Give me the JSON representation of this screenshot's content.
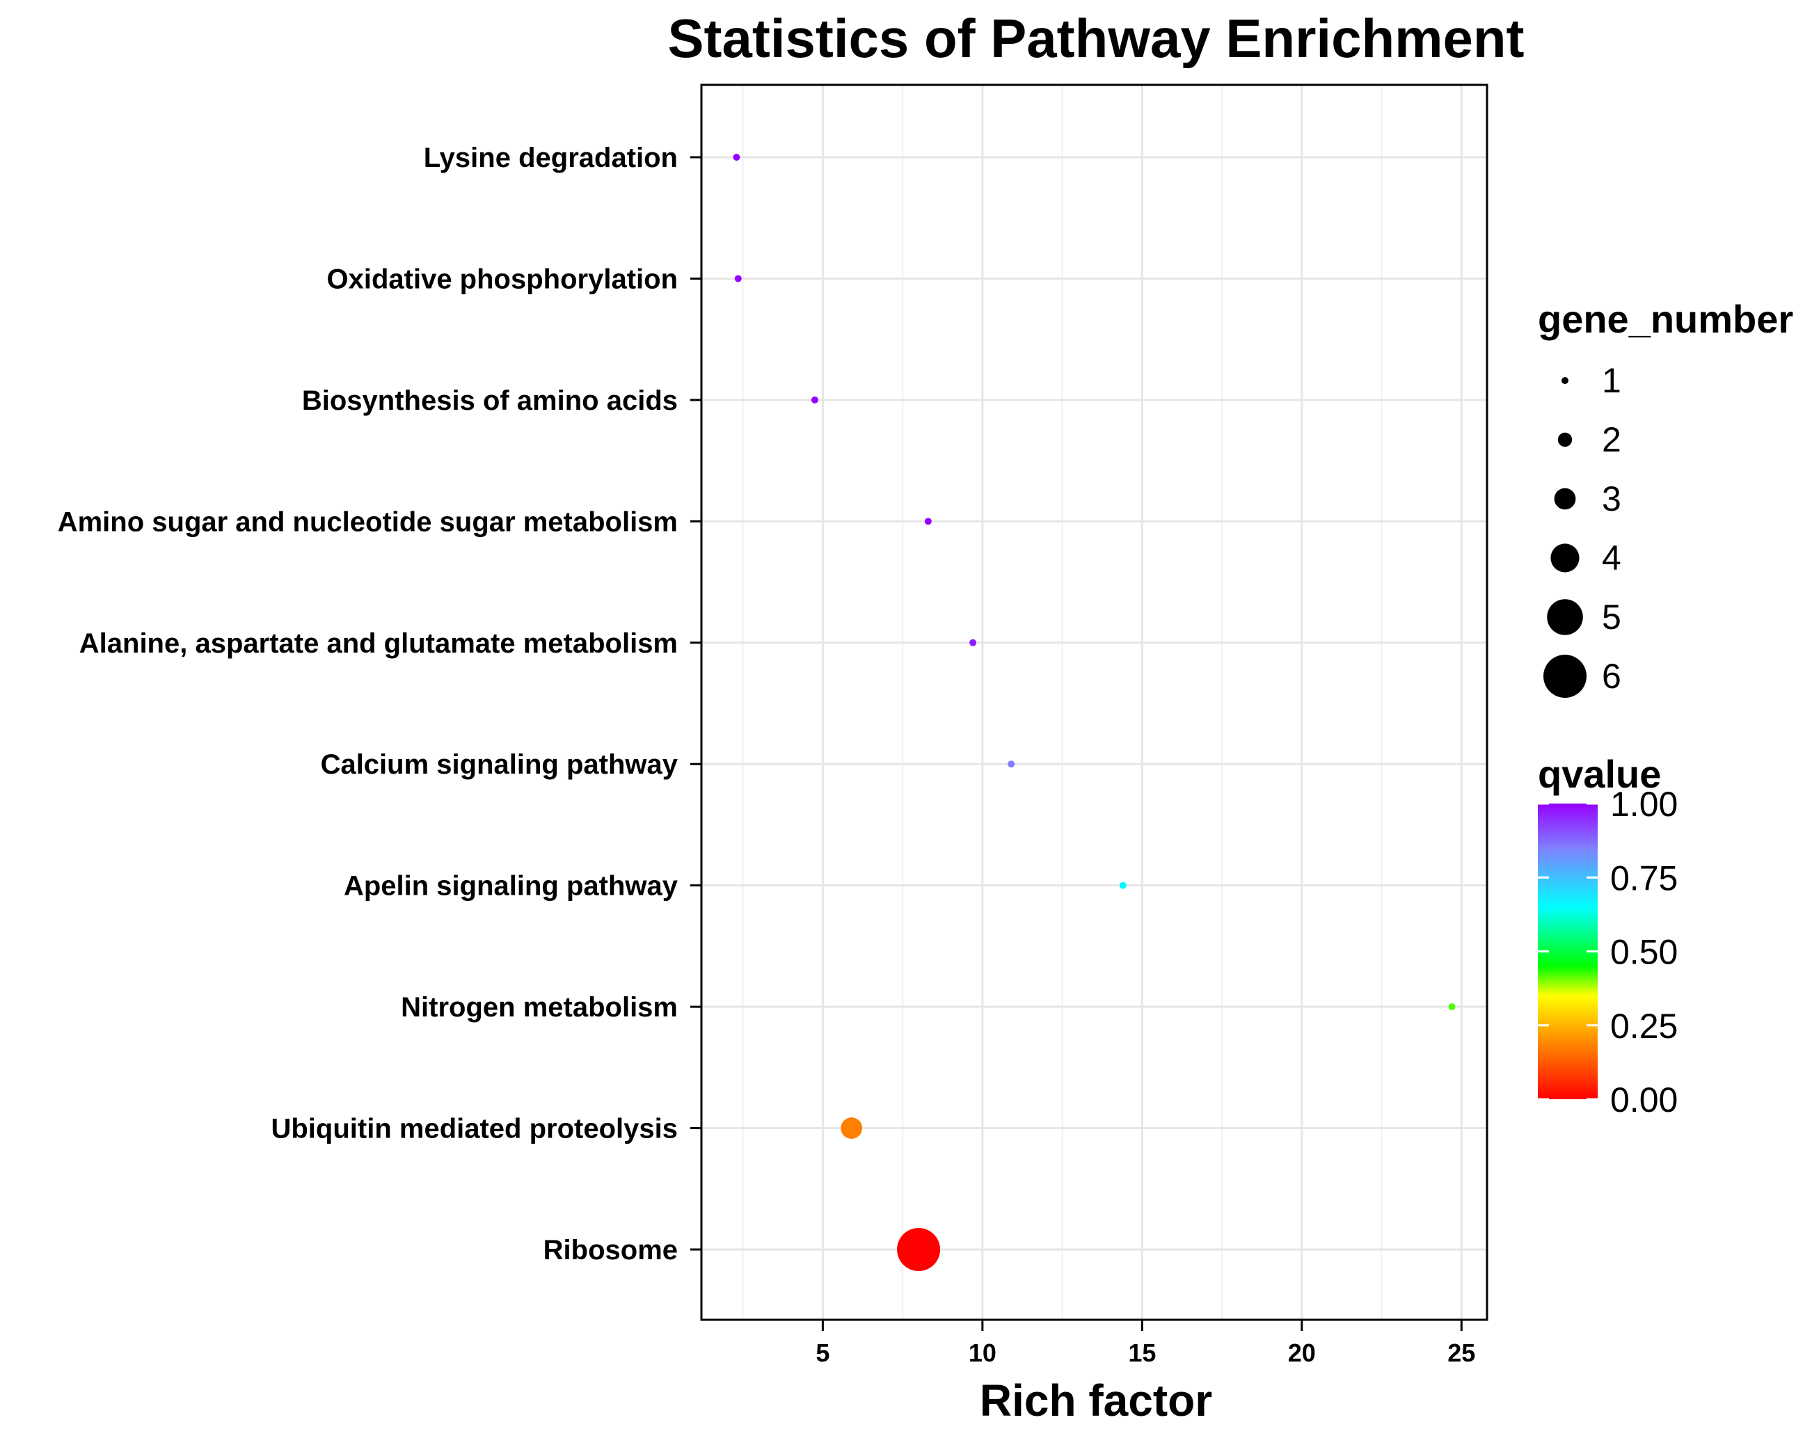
{
  "chart_data": {
    "type": "scatter",
    "title": "Statistics of Pathway Enrichment",
    "xlabel": "Rich factor",
    "ylabel": "",
    "xlim": [
      1.2,
      25.8
    ],
    "x_ticks": [
      "5",
      "10",
      "15",
      "20",
      "25"
    ],
    "x_tick_values": [
      5,
      10,
      15,
      20,
      25
    ],
    "grid": true,
    "categories": [
      "Lysine degradation",
      "Oxidative phosphorylation",
      "Biosynthesis of amino acids",
      "Amino sugar and nucleotide sugar metabolism",
      "Alanine, aspartate and glutamate metabolism",
      "Calcium signaling pathway",
      "Apelin signaling pathway",
      "Nitrogen metabolism",
      "Ubiquitin mediated proteolysis",
      "Ribosome"
    ],
    "points": [
      {
        "pathway": "Lysine degradation",
        "rich_factor": 2.3,
        "gene_number": 1,
        "qvalue": 1.0
      },
      {
        "pathway": "Oxidative phosphorylation",
        "rich_factor": 2.35,
        "gene_number": 1,
        "qvalue": 1.0
      },
      {
        "pathway": "Biosynthesis of amino acids",
        "rich_factor": 4.75,
        "gene_number": 1,
        "qvalue": 1.0
      },
      {
        "pathway": "Amino sugar and nucleotide sugar metabolism",
        "rich_factor": 8.3,
        "gene_number": 1,
        "qvalue": 1.0
      },
      {
        "pathway": "Alanine, aspartate and glutamate metabolism",
        "rich_factor": 9.7,
        "gene_number": 1,
        "qvalue": 0.97
      },
      {
        "pathway": "Calcium signaling pathway",
        "rich_factor": 10.9,
        "gene_number": 1,
        "qvalue": 0.85
      },
      {
        "pathway": "Apelin signaling pathway",
        "rich_factor": 14.4,
        "gene_number": 1,
        "qvalue": 0.66
      },
      {
        "pathway": "Nitrogen metabolism",
        "rich_factor": 24.7,
        "gene_number": 1,
        "qvalue": 0.42
      },
      {
        "pathway": "Ubiquitin mediated proteolysis",
        "rich_factor": 5.9,
        "gene_number": 3,
        "qvalue": 0.18
      },
      {
        "pathway": "Ribosome",
        "rich_factor": 8.0,
        "gene_number": 6,
        "qvalue": 0.0
      }
    ],
    "legend_size": {
      "title": "gene_number",
      "entries": [
        "1",
        "2",
        "3",
        "4",
        "5",
        "6"
      ],
      "values": [
        1,
        2,
        3,
        4,
        5,
        6
      ]
    },
    "legend_color": {
      "title": "qvalue",
      "tick_labels": [
        "1.00",
        "0.75",
        "0.50",
        "0.25",
        "0.00"
      ],
      "tick_values": [
        1.0,
        0.75,
        0.5,
        0.25,
        0.0
      ],
      "scale": [
        "#ff0000",
        "#ff8000",
        "#ffff00",
        "#00ff00",
        "#00ffff",
        "#0080ff",
        "#8000ff"
      ]
    }
  }
}
